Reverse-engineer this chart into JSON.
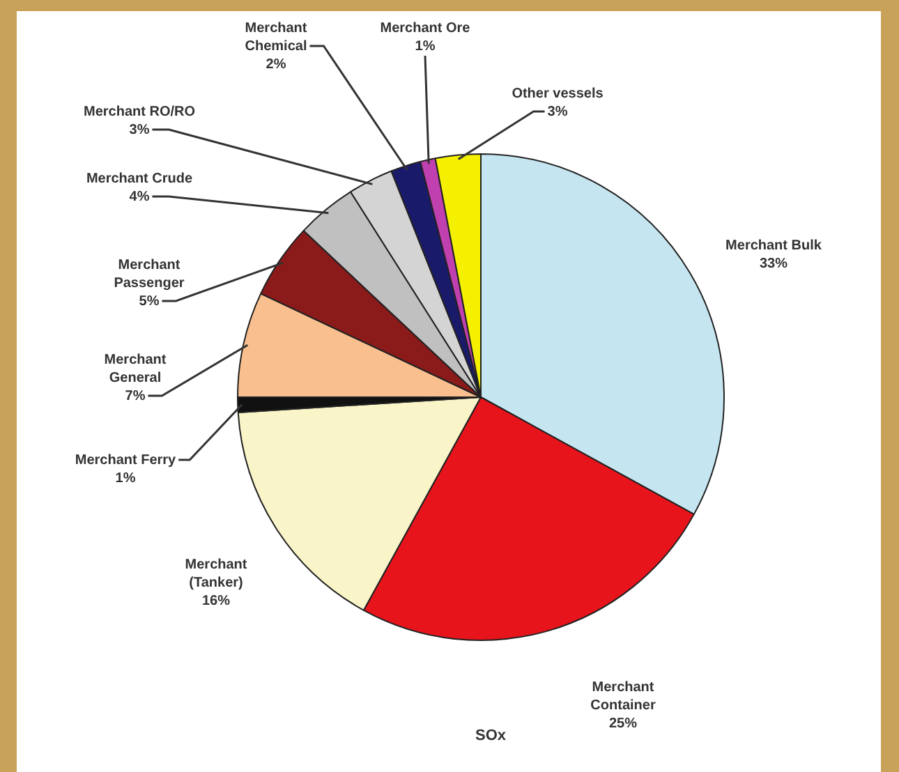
{
  "chart_data": {
    "type": "pie",
    "title": "SOx",
    "categories": [
      "Merchant Bulk",
      "Merchant Container",
      "Merchant (Tanker)",
      "Merchant Ferry",
      "Merchant General",
      "Merchant Passenger",
      "Merchant Crude",
      "Merchant RO/RO",
      "Merchant Chemical",
      "Merchant Ore",
      "Other vessels"
    ],
    "values": [
      33,
      25,
      16,
      1,
      7,
      5,
      4,
      3,
      2,
      1,
      3
    ],
    "value_labels": [
      "33%",
      "25%",
      "16%",
      "1%",
      "7%",
      "5%",
      "4%",
      "3%",
      "2%",
      "1%",
      "3%"
    ],
    "colors": [
      "#c5e6f0",
      "#e8141c",
      "#faf5c8",
      "#111111",
      "#f9bf8f",
      "#8b1a1a",
      "#c0c0c0",
      "#d4d4d4",
      "#1a1a6b",
      "#c040b0",
      "#f5f000"
    ],
    "legend": false
  }
}
